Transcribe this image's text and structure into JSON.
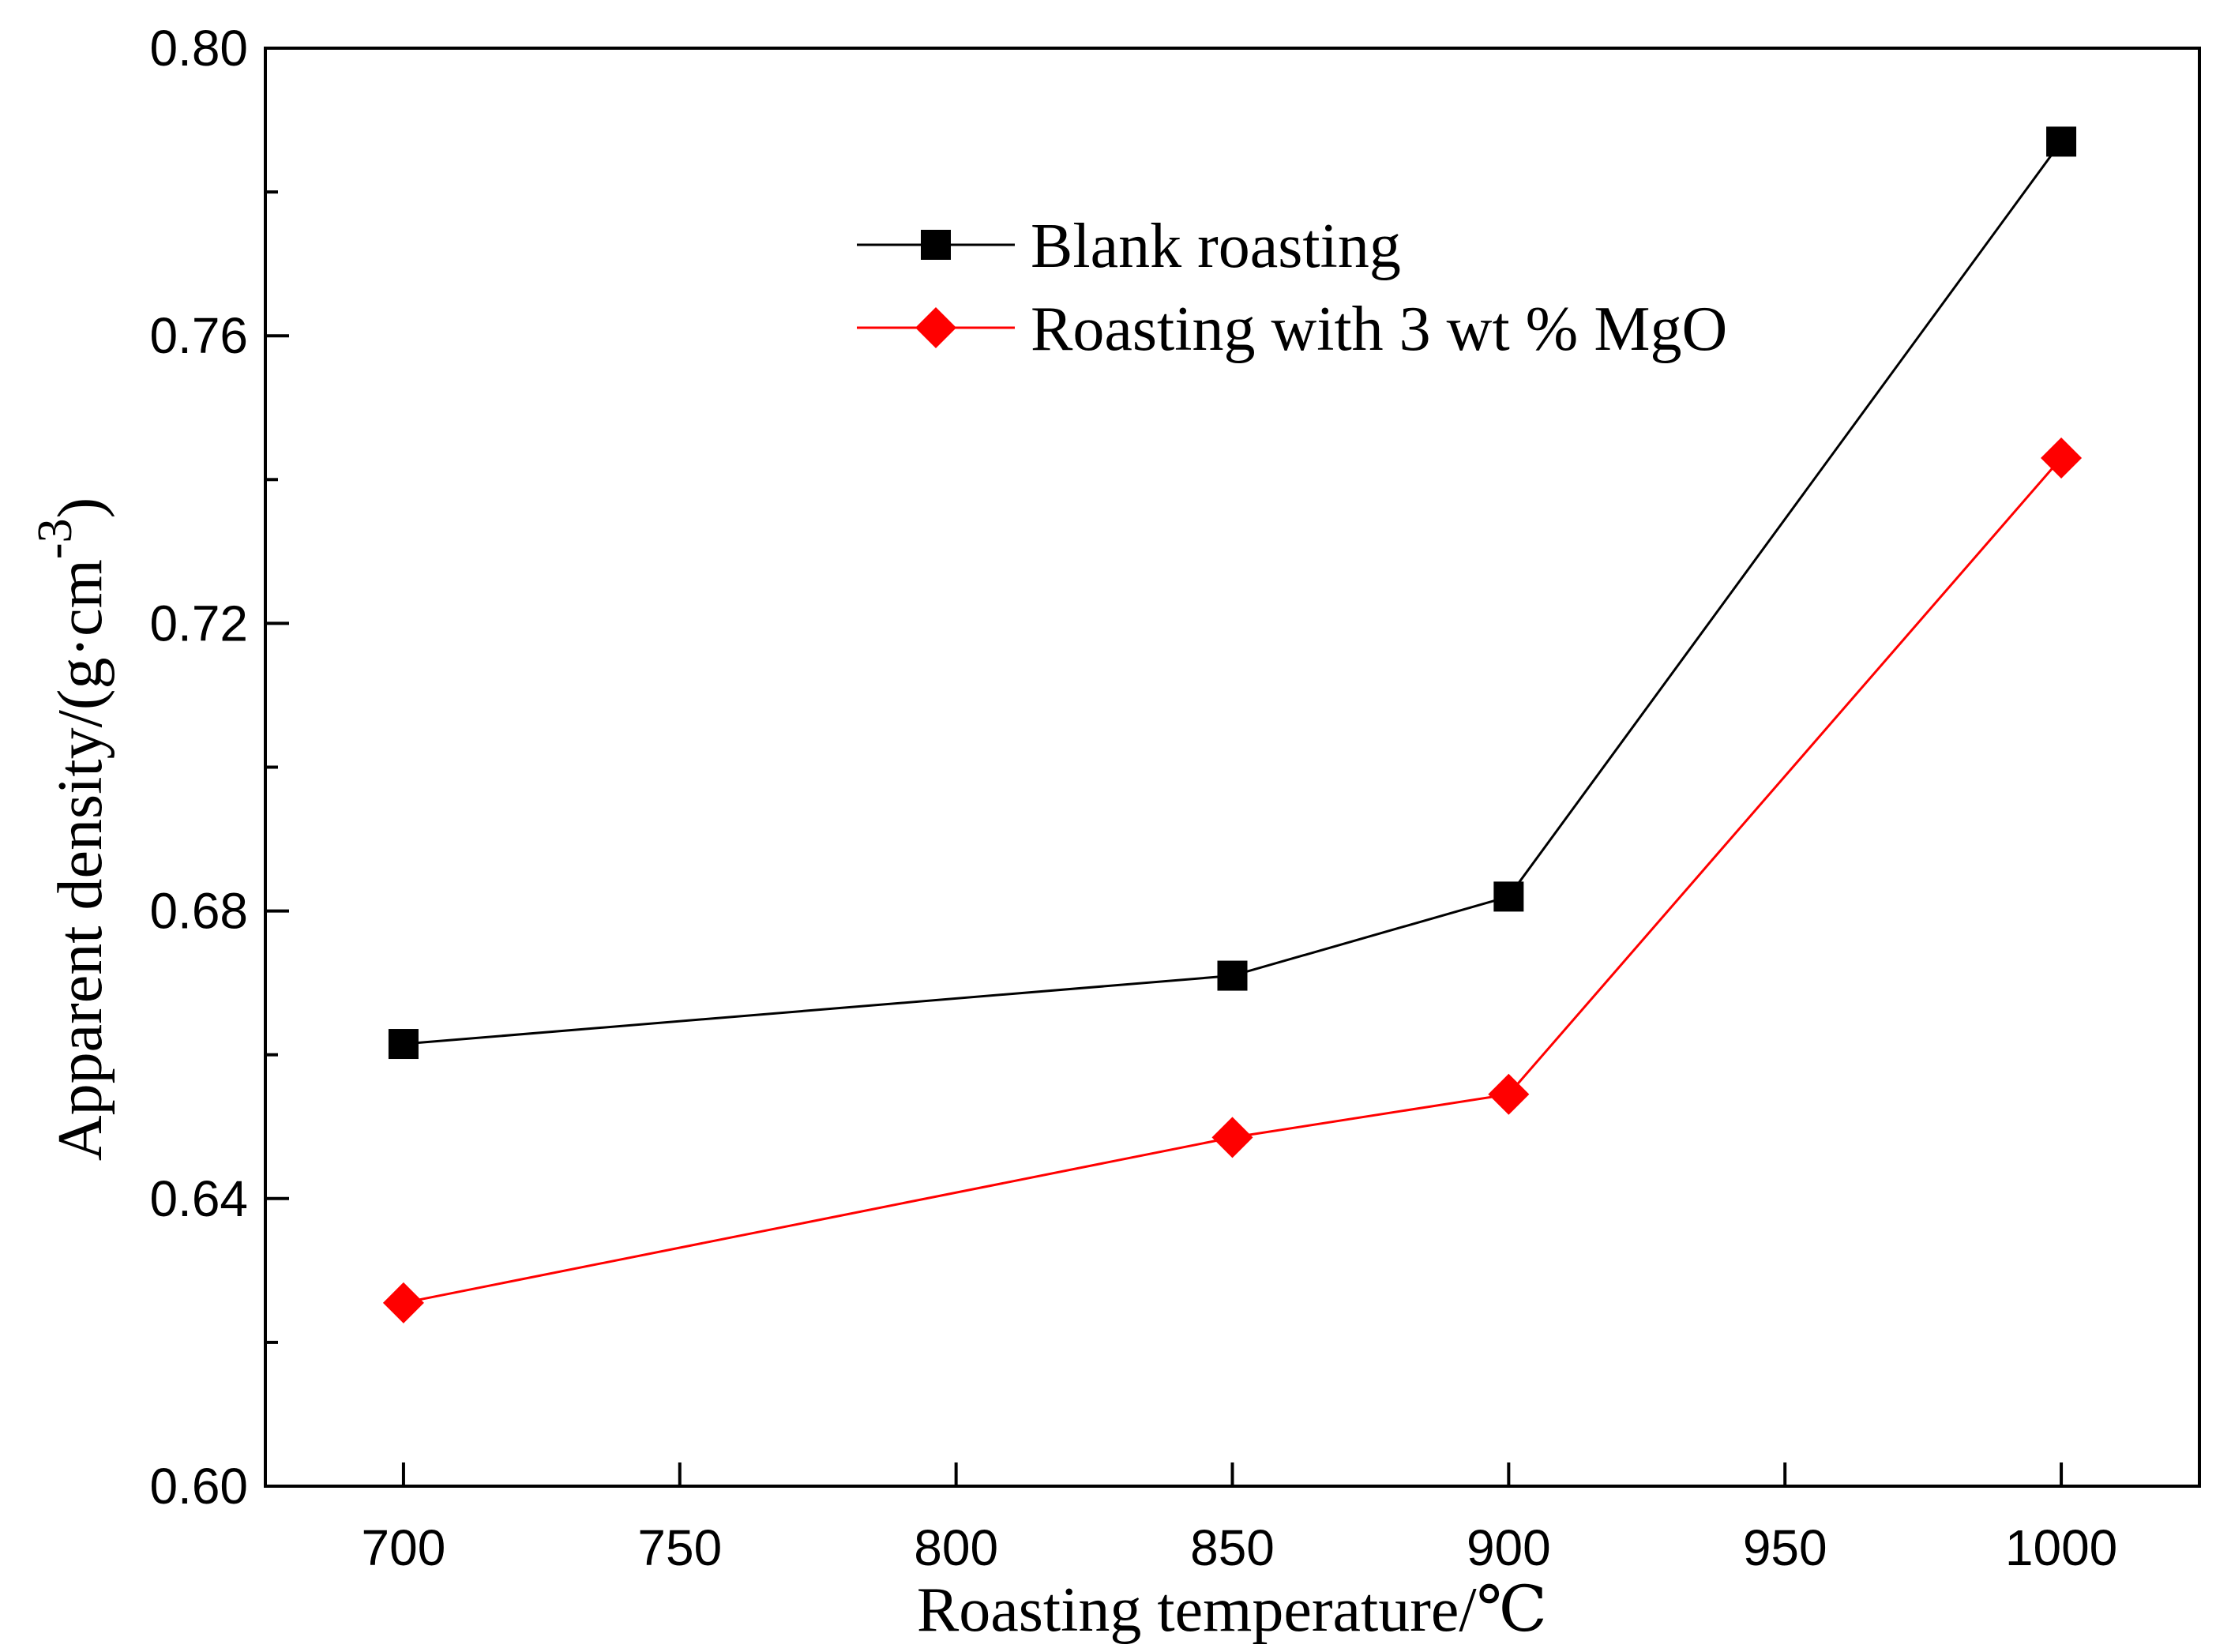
{
  "chart_data": {
    "type": "line",
    "title": "",
    "xlabel": "Roasting temperature/℃",
    "ylabel": {
      "main": "Apparent density/(g·cm",
      "superscript": "-3",
      "close": ")"
    },
    "xlim": [
      675,
      1025
    ],
    "ylim": [
      0.6,
      0.8
    ],
    "x_ticks": [
      700,
      750,
      800,
      850,
      900,
      950,
      1000
    ],
    "x_tick_labels": [
      "700",
      "750",
      "800",
      "850",
      "900",
      "950",
      "1000"
    ],
    "y_ticks": [
      0.6,
      0.64,
      0.68,
      0.72,
      0.76,
      0.8
    ],
    "y_tick_labels": [
      "0.60",
      "0.64",
      "0.68",
      "0.72",
      "0.76",
      "0.80"
    ],
    "y_minor_ticks": [
      0.62,
      0.66,
      0.7,
      0.74,
      0.78
    ],
    "grid": false,
    "legend_position": "top-center",
    "series": [
      {
        "name": "Blank roasting",
        "color": "#000000",
        "marker": "square",
        "x": [
          700,
          850,
          900,
          1000
        ],
        "values": [
          0.6615,
          0.671,
          0.682,
          0.787
        ]
      },
      {
        "name": "Roasting with 3 wt % MgO",
        "color": "#ff0000",
        "marker": "diamond",
        "x": [
          700,
          850,
          900,
          1000
        ],
        "values": [
          0.6255,
          0.6485,
          0.6545,
          0.743
        ]
      }
    ]
  }
}
